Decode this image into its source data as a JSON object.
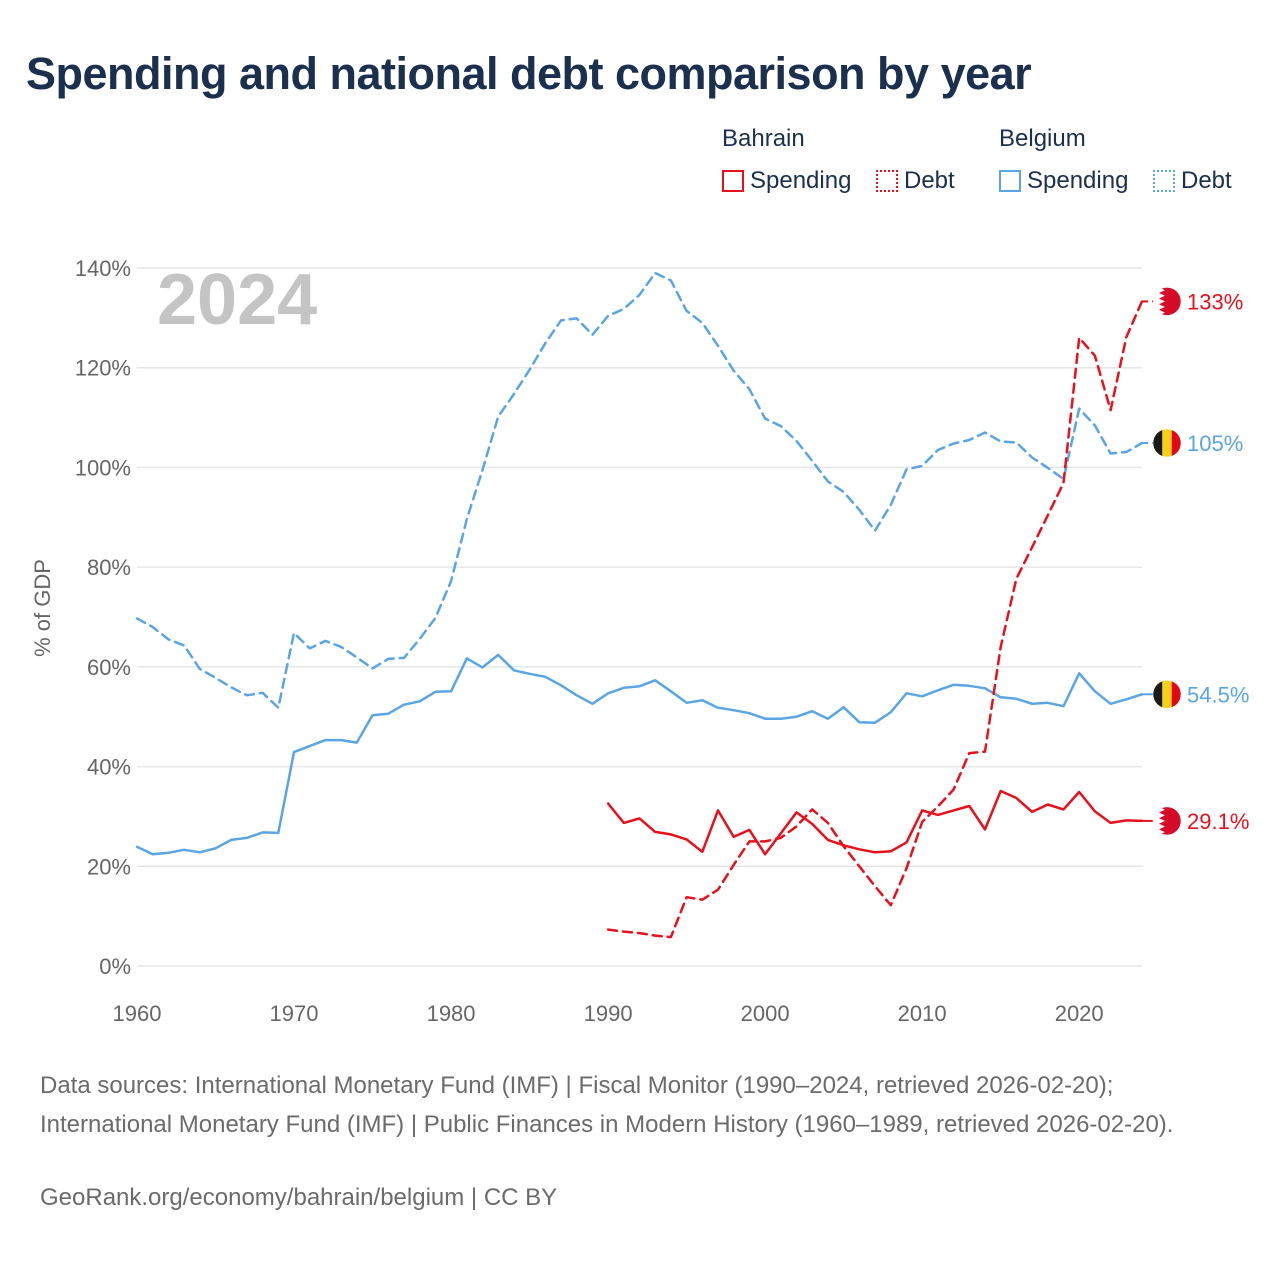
{
  "title": "Spending and national debt comparison by year",
  "legend": {
    "bahrain": {
      "title": "Bahrain",
      "spending": "Spending",
      "debt": "Debt"
    },
    "belgium": {
      "title": "Belgium",
      "spending": "Spending",
      "debt": "Debt"
    }
  },
  "colors": {
    "bahrain": "#e8101b",
    "belgium": "#5aa5e4",
    "grid": "#e6e6e6",
    "axis_text": "#666666",
    "year_watermark": "#c4c4c4"
  },
  "year_watermark": "2024",
  "sources": "Data sources: International Monetary Fund (IMF) | Fiscal Monitor (1990–2024, retrieved 2026-02-20); International Monetary Fund (IMF) | Public Finances in Modern History (1960–1989, retrieved 2026-02-20).",
  "credit": "GeoRank.org/economy/bahrain/belgium | CC BY",
  "chart_data": {
    "type": "line",
    "title": "Spending and national debt comparison by year",
    "ylabel": "% of GDP",
    "xlabel": "",
    "xlim": [
      1960,
      2024
    ],
    "ylim": [
      0,
      140
    ],
    "x_ticks": [
      1960,
      1970,
      1980,
      1990,
      2000,
      2010,
      2020
    ],
    "y_ticks": [
      0,
      20,
      40,
      60,
      80,
      100,
      120,
      140
    ],
    "y_tick_suffix": "%",
    "grid": true,
    "end_labels": [
      {
        "series": "Bahrain Debt",
        "label": "133%",
        "value": 133.3,
        "country": "bahrain"
      },
      {
        "series": "Belgium Debt",
        "label": "105%",
        "value": 104.9,
        "country": "belgium"
      },
      {
        "series": "Belgium Spending",
        "label": "54.5%",
        "value": 54.5,
        "country": "belgium"
      },
      {
        "series": "Bahrain Spending",
        "label": "29.1%",
        "value": 29.1,
        "country": "bahrain"
      }
    ],
    "series": [
      {
        "name": "Belgium Debt",
        "country": "belgium",
        "style": "dashed",
        "x": [
          1960,
          1961,
          1962,
          1963,
          1964,
          1965,
          1966,
          1967,
          1968,
          1969,
          1970,
          1971,
          1972,
          1973,
          1974,
          1975,
          1976,
          1977,
          1978,
          1979,
          1980,
          1981,
          1982,
          1983,
          1984,
          1985,
          1986,
          1987,
          1988,
          1989,
          1990,
          1991,
          1992,
          1993,
          1994,
          1995,
          1996,
          1997,
          1998,
          1999,
          2000,
          2001,
          2002,
          2003,
          2004,
          2005,
          2006,
          2007,
          2008,
          2009,
          2010,
          2011,
          2012,
          2013,
          2014,
          2015,
          2016,
          2017,
          2018,
          2019,
          2020,
          2021,
          2022,
          2023,
          2024
        ],
        "values": [
          69.7,
          68.0,
          65.5,
          64.3,
          59.6,
          57.8,
          55.9,
          54.3,
          54.8,
          51.8,
          66.8,
          63.7,
          65.2,
          64.0,
          61.9,
          59.7,
          61.6,
          61.8,
          65.6,
          69.8,
          77.2,
          89.6,
          99.5,
          110.2,
          114.7,
          119.6,
          124.9,
          129.5,
          129.9,
          126.6,
          130.4,
          131.8,
          134.6,
          139.0,
          137.5,
          131.4,
          129.0,
          124.4,
          119.4,
          115.7,
          109.8,
          108.3,
          105.3,
          101.3,
          97.2,
          95.1,
          91.5,
          87.3,
          92.5,
          99.6,
          100.3,
          103.5,
          104.8,
          105.5,
          107.0,
          105.2,
          105.0,
          102.0,
          99.9,
          97.7,
          111.8,
          108.4,
          102.8,
          103.1,
          104.9
        ]
      },
      {
        "name": "Belgium Spending",
        "country": "belgium",
        "style": "solid",
        "x": [
          1960,
          1961,
          1962,
          1963,
          1964,
          1965,
          1966,
          1967,
          1968,
          1969,
          1970,
          1971,
          1972,
          1973,
          1974,
          1975,
          1976,
          1977,
          1978,
          1979,
          1980,
          1981,
          1982,
          1983,
          1984,
          1985,
          1986,
          1987,
          1988,
          1989,
          1990,
          1991,
          1992,
          1993,
          1994,
          1995,
          1996,
          1997,
          1998,
          1999,
          2000,
          2001,
          2002,
          2003,
          2004,
          2005,
          2006,
          2007,
          2008,
          2009,
          2010,
          2011,
          2012,
          2013,
          2014,
          2015,
          2016,
          2017,
          2018,
          2019,
          2020,
          2021,
          2022,
          2023,
          2024
        ],
        "values": [
          23.9,
          22.4,
          22.7,
          23.3,
          22.8,
          23.6,
          25.3,
          25.7,
          26.8,
          26.7,
          42.9,
          44.1,
          45.3,
          45.3,
          44.8,
          50.3,
          50.6,
          52.4,
          53.1,
          55.0,
          55.1,
          61.7,
          59.9,
          62.4,
          59.3,
          58.6,
          58.0,
          56.3,
          54.3,
          52.6,
          54.7,
          55.8,
          56.1,
          57.3,
          55.1,
          52.8,
          53.3,
          51.8,
          51.3,
          50.7,
          49.6,
          49.6,
          50.0,
          51.1,
          49.6,
          51.9,
          48.9,
          48.8,
          50.9,
          54.7,
          54.1,
          55.3,
          56.4,
          56.2,
          55.7,
          53.9,
          53.6,
          52.6,
          52.8,
          52.1,
          58.7,
          55.1,
          52.6,
          53.5,
          54.5
        ]
      },
      {
        "name": "Bahrain Debt",
        "country": "bahrain",
        "style": "dashed",
        "x": [
          1990,
          1991,
          1992,
          1993,
          1994,
          1995,
          1996,
          1997,
          1998,
          1999,
          2000,
          2001,
          2002,
          2003,
          2004,
          2005,
          2006,
          2007,
          2008,
          2009,
          2010,
          2011,
          2012,
          2013,
          2014,
          2015,
          2016,
          2017,
          2018,
          2019,
          2020,
          2021,
          2022,
          2023,
          2024
        ],
        "values": [
          7.3,
          6.9,
          6.6,
          6.1,
          5.8,
          13.8,
          13.3,
          15.3,
          20.3,
          25.0,
          25.0,
          25.7,
          28.0,
          31.4,
          28.7,
          24.0,
          20.0,
          16.0,
          12.2,
          19.6,
          28.9,
          32.0,
          35.4,
          42.7,
          43.0,
          64.0,
          77.7,
          84.0,
          90.4,
          96.9,
          126.0,
          122.4,
          111.5,
          126.1,
          133.3
        ]
      },
      {
        "name": "Bahrain Spending",
        "country": "bahrain",
        "style": "solid",
        "x": [
          1990,
          1991,
          1992,
          1993,
          1994,
          1995,
          1996,
          1997,
          1998,
          1999,
          2000,
          2001,
          2002,
          2003,
          2004,
          2005,
          2006,
          2007,
          2008,
          2009,
          2010,
          2011,
          2012,
          2013,
          2014,
          2015,
          2016,
          2017,
          2018,
          2019,
          2020,
          2021,
          2022,
          2023,
          2024
        ],
        "values": [
          32.6,
          28.7,
          29.6,
          26.9,
          26.4,
          25.4,
          22.9,
          31.2,
          25.9,
          27.3,
          22.4,
          26.6,
          30.8,
          28.5,
          25.3,
          24.2,
          23.4,
          22.8,
          23.0,
          24.8,
          31.2,
          30.3,
          31.2,
          32.1,
          27.4,
          35.1,
          33.7,
          30.9,
          32.4,
          31.4,
          34.9,
          31.0,
          28.7,
          29.2,
          29.1
        ]
      }
    ]
  }
}
